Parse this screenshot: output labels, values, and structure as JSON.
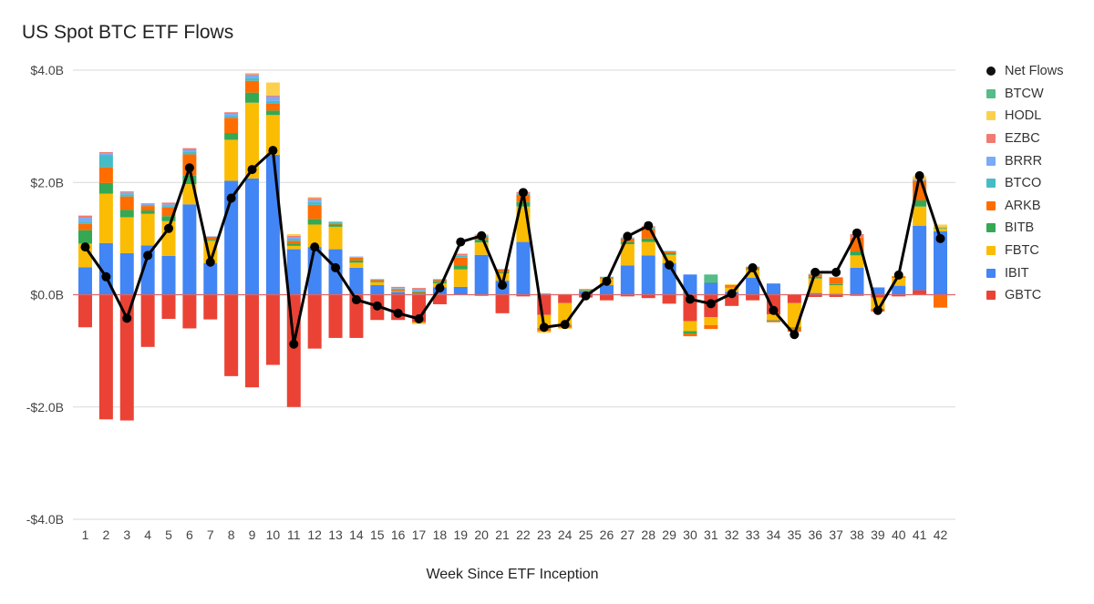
{
  "chart_data": {
    "type": "bar",
    "stacked": true,
    "title": "US Spot BTC ETF Flows",
    "xlabel": "Week Since ETF Inception",
    "ylabel": "",
    "ylim": [
      -4.0,
      4.0
    ],
    "y_ticks": [
      "-$4.0B",
      "-$2.0B",
      "$0.0B",
      "$2.0B",
      "$4.0B"
    ],
    "grid": true,
    "legend_position": "right",
    "categories": [
      "1",
      "2",
      "3",
      "4",
      "5",
      "6",
      "7",
      "8",
      "9",
      "10",
      "11",
      "12",
      "13",
      "14",
      "15",
      "16",
      "17",
      "18",
      "19",
      "20",
      "21",
      "22",
      "23",
      "24",
      "25",
      "26",
      "27",
      "28",
      "29",
      "30",
      "31",
      "32",
      "33",
      "34",
      "35",
      "36",
      "37",
      "38",
      "39",
      "40",
      "41",
      "42"
    ],
    "series": [
      {
        "name": "GBTC",
        "color": "#ea4335",
        "values": [
          -0.58,
          -2.22,
          -2.24,
          -0.93,
          -0.43,
          -0.6,
          -0.44,
          -1.45,
          -1.65,
          -1.25,
          -2.0,
          -0.96,
          -0.77,
          -0.77,
          -0.45,
          -0.45,
          -0.49,
          -0.17,
          0,
          -0.02,
          -0.33,
          -0.03,
          -0.36,
          -0.15,
          -0.05,
          -0.1,
          -0.03,
          -0.06,
          -0.16,
          -0.47,
          -0.4,
          -0.2,
          -0.1,
          -0.35,
          -0.15,
          -0.04,
          -0.04,
          -0.02,
          -0.05,
          -0.03,
          0.08,
          0
        ]
      },
      {
        "name": "IBIT",
        "color": "#4285f4",
        "values": [
          0.49,
          0.92,
          0.74,
          0.88,
          0.69,
          1.61,
          0.56,
          2.03,
          2.07,
          2.49,
          0.81,
          0.85,
          0.81,
          0.48,
          0.17,
          0.05,
          0.02,
          0.13,
          0.14,
          0.71,
          0.25,
          0.94,
          0.02,
          0.01,
          0.07,
          0.17,
          0.52,
          0.7,
          0.56,
          0.36,
          0.21,
          0.05,
          0.3,
          0.2,
          0.0,
          0.03,
          0.02,
          0.48,
          0.13,
          0.16,
          1.15,
          1.13
        ]
      },
      {
        "name": "FBTC",
        "color": "#fbbc04",
        "values": [
          0.42,
          0.88,
          0.64,
          0.56,
          0.62,
          0.36,
          0.4,
          0.73,
          1.35,
          0.71,
          0.06,
          0.4,
          0.4,
          0.09,
          0.05,
          0.01,
          -0.03,
          0.07,
          0.31,
          0.22,
          0.13,
          0.63,
          -0.23,
          -0.38,
          0.01,
          0.11,
          0.38,
          0.24,
          0.15,
          -0.18,
          -0.14,
          0.08,
          0.14,
          -0.1,
          -0.43,
          0.26,
          0.15,
          0.22,
          -0.2,
          0.14,
          0.34,
          0.05
        ]
      },
      {
        "name": "BITB",
        "color": "#34a853",
        "values": [
          0.24,
          0.19,
          0.13,
          0.06,
          0.09,
          0.15,
          0.02,
          0.12,
          0.18,
          0.08,
          0.04,
          0.1,
          0.04,
          0.04,
          0.01,
          0.01,
          0.02,
          0.03,
          0.07,
          0.05,
          0.02,
          0.08,
          -0.01,
          -0.01,
          0.01,
          0.01,
          0.04,
          0.06,
          0.03,
          -0.04,
          0.01,
          0.01,
          0.02,
          -0.01,
          -0.02,
          0.03,
          0.02,
          0.07,
          -0.01,
          0.01,
          0.11,
          0.01
        ]
      },
      {
        "name": "ARKB",
        "color": "#ff6d01",
        "values": [
          0.11,
          0.28,
          0.24,
          0.08,
          0.15,
          0.38,
          0.05,
          0.27,
          0.21,
          0.12,
          0.05,
          0.25,
          0.02,
          0.05,
          0.03,
          0.03,
          0.02,
          0.03,
          0.14,
          0.05,
          0.05,
          0.13,
          -0.05,
          -0.05,
          0.01,
          0.02,
          0.06,
          0.17,
          0.03,
          -0.05,
          -0.07,
          0.03,
          0.03,
          -0.03,
          -0.06,
          0.04,
          0.12,
          0.25,
          -0.04,
          0.02,
          0.35,
          -0.23
        ]
      },
      {
        "name": "BTCO",
        "color": "#46bdc6",
        "values": [
          0.04,
          0.22,
          0.04,
          0.02,
          0.03,
          0.05,
          0.0,
          0.03,
          0.05,
          0.05,
          0.03,
          0.05,
          0.02,
          0.01,
          0.01,
          0.01,
          0.01,
          0.01,
          0.03,
          0.02,
          0.0,
          0.02,
          0.0,
          0.0,
          0.0,
          0.01,
          0.01,
          0.02,
          0.01,
          0.0,
          0.0,
          0.0,
          0.01,
          0.0,
          0.0,
          0.01,
          0.0,
          0.01,
          0.0,
          0.0,
          0.01,
          0.01
        ]
      },
      {
        "name": "BRRR",
        "color": "#7baaf7",
        "values": [
          0.07,
          0.03,
          0.03,
          0.02,
          0.03,
          0.03,
          0.01,
          0.04,
          0.05,
          0.08,
          0.03,
          0.04,
          0.01,
          0.01,
          0.01,
          0.01,
          0.02,
          0.01,
          0.01,
          0.01,
          0.01,
          0.01,
          0.0,
          0.0,
          0.0,
          0.0,
          0.01,
          0.01,
          0.0,
          0.0,
          0.0,
          0.0,
          0.0,
          0.0,
          0.0,
          0.0,
          0.0,
          0.0,
          0.0,
          0.0,
          0.01,
          0.0
        ]
      },
      {
        "name": "EZBC",
        "color": "#f07b72",
        "values": [
          0.04,
          0.02,
          0.02,
          0.01,
          0.03,
          0.03,
          0.0,
          0.03,
          0.02,
          0.02,
          0.03,
          0.03,
          0.0,
          0.0,
          0.0,
          0.02,
          0.03,
          0.0,
          0.03,
          0.01,
          0.0,
          0.02,
          0.0,
          0.0,
          0.0,
          0.0,
          0.0,
          0.02,
          0.0,
          0.0,
          0.0,
          0.0,
          0.0,
          0.0,
          0.0,
          0.0,
          0.0,
          0.05,
          0.0,
          0.0,
          0.01,
          0.0
        ]
      },
      {
        "name": "HODL",
        "color": "#fcd04f",
        "values": [
          0.0,
          0.0,
          0.0,
          0.0,
          0.0,
          0.0,
          0.0,
          0.0,
          0.02,
          0.23,
          0.03,
          0.02,
          0.01,
          0.0,
          0.0,
          0.0,
          0.0,
          0.0,
          0.0,
          0.0,
          0.0,
          0.0,
          -0.03,
          -0.02,
          0.0,
          0.0,
          0.0,
          0.0,
          0.0,
          0.0,
          0.0,
          0.02,
          0.0,
          0.0,
          0.0,
          0.0,
          0.0,
          0.0,
          0.0,
          0.0,
          0.05,
          0.05
        ]
      },
      {
        "name": "BTCW",
        "color": "#57bb8a",
        "values": [
          0.0,
          0.0,
          0.0,
          0.0,
          0.0,
          0.0,
          0.0,
          0.0,
          0.0,
          0.0,
          0.0,
          0.0,
          0.0,
          0.0,
          0.0,
          0.0,
          0.0,
          0.0,
          0.0,
          0.0,
          0.0,
          0.0,
          0.0,
          0.0,
          0.0,
          0.0,
          0.0,
          0.0,
          0.0,
          0.0,
          0.14,
          0.0,
          0.0,
          0.0,
          0.0,
          0.0,
          0.0,
          0.0,
          0.0,
          0.0,
          0.0,
          0.0
        ]
      }
    ],
    "line_series": {
      "name": "Net Flows",
      "color": "#000000",
      "values": [
        0.85,
        0.32,
        -0.42,
        0.7,
        1.18,
        2.26,
        0.58,
        1.72,
        2.23,
        2.57,
        -0.88,
        0.85,
        0.48,
        -0.09,
        -0.2,
        -0.33,
        -0.43,
        0.12,
        0.94,
        1.05,
        0.17,
        1.82,
        -0.58,
        -0.53,
        -0.02,
        0.24,
        1.04,
        1.23,
        0.53,
        -0.08,
        -0.16,
        0.02,
        0.48,
        -0.28,
        -0.71,
        0.4,
        0.4,
        1.1,
        -0.28,
        0.35,
        2.12,
        1.0
      ]
    },
    "legend": [
      "Net Flows",
      "BTCW",
      "HODL",
      "EZBC",
      "BRRR",
      "BTCO",
      "ARKB",
      "BITB",
      "FBTC",
      "IBIT",
      "GBTC"
    ]
  }
}
